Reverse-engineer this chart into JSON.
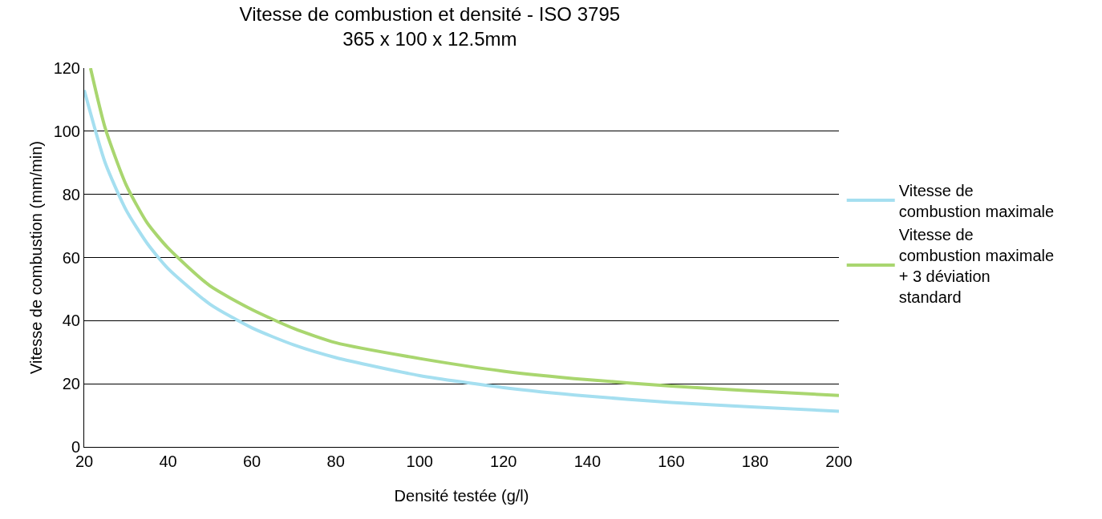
{
  "chart_data": {
    "type": "line",
    "title": "Vitesse de combustion et densité - ISO 3795\n365 x 100 x 12.5mm",
    "xlabel": "Densité testée (g/l)",
    "ylabel": "Vitesse de combustion (mm/min)",
    "xlim": [
      20,
      200
    ],
    "xticks": [
      20,
      40,
      60,
      80,
      100,
      120,
      140,
      160,
      180,
      200
    ],
    "ylim": [
      0,
      120
    ],
    "yticks": [
      0,
      20,
      40,
      60,
      80,
      100,
      120
    ],
    "grid": "y",
    "legend": "right",
    "marker": "none",
    "line_style": "solid",
    "series": [
      {
        "name": "Vitesse de combustion maximale",
        "color": "#a5dff0",
        "x": [
          20,
          25,
          30,
          35,
          40,
          50,
          60,
          70,
          80,
          100,
          120,
          140,
          160,
          180,
          200
        ],
        "values": [
          113,
          90,
          75,
          64.5,
          56.5,
          45.2,
          37.7,
          32.3,
          28.3,
          22.6,
          18.8,
          16.1,
          14.1,
          12.6,
          11.3
        ]
      },
      {
        "name": "Vitesse de combustion maximale + 3 déviation standard",
        "color": "#a9d66f",
        "x": [
          21.5,
          25,
          30,
          35,
          40,
          50,
          60,
          70,
          80,
          100,
          120,
          140,
          160,
          180,
          200
        ],
        "values": [
          120,
          101,
          83,
          71,
          63,
          51,
          43.5,
          37.5,
          33,
          28,
          24,
          21.3,
          19.3,
          17.7,
          16.3
        ]
      }
    ]
  }
}
